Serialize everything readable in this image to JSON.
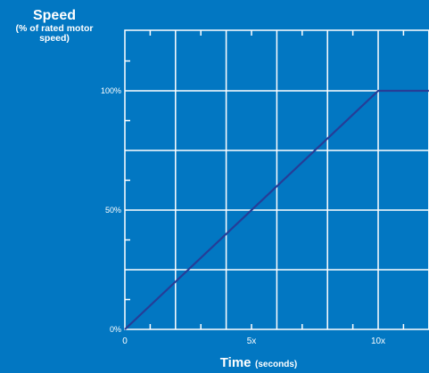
{
  "chart_data": {
    "type": "line",
    "ylabel": "Speed",
    "ylabel_sub": "(% of rated motor speed)",
    "xlabel": "Time",
    "xlabel_sub": "(seconds)",
    "x_ticks": [
      {
        "value": 0,
        "label": "0"
      },
      {
        "value": 5,
        "label": "5x"
      },
      {
        "value": 10,
        "label": "10x"
      }
    ],
    "y_ticks": [
      {
        "value": 0,
        "label": "0%"
      },
      {
        "value": 50,
        "label": "50%"
      },
      {
        "value": 100,
        "label": "100%"
      }
    ],
    "xlim": [
      0,
      12
    ],
    "ylim": [
      0,
      125
    ],
    "grid": true,
    "series": [
      {
        "x": [
          0,
          10,
          12
        ],
        "y": [
          0,
          100,
          100
        ]
      }
    ],
    "colors": {
      "background": "#0277c2",
      "grid": "#ffffff",
      "line": "#263d97"
    }
  }
}
